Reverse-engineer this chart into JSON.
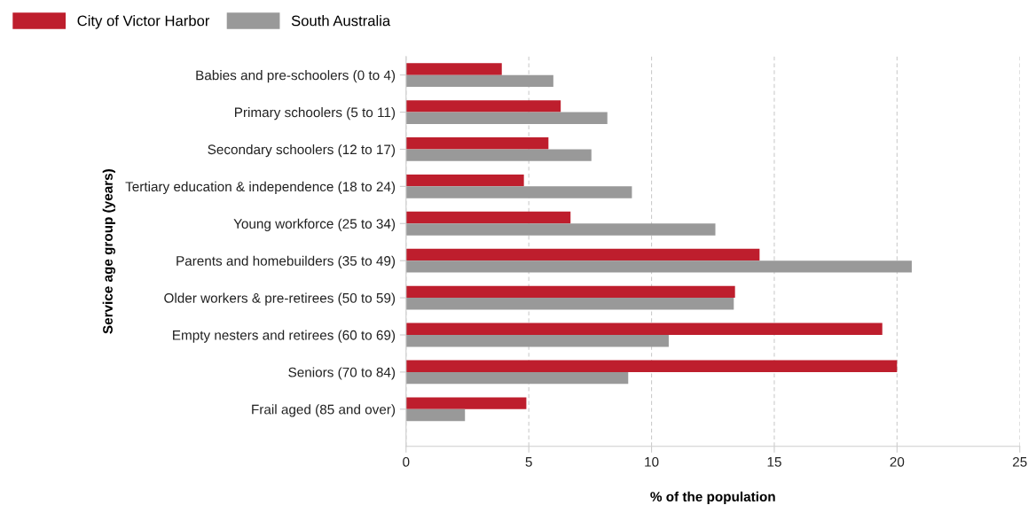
{
  "chart_data": {
    "type": "bar",
    "orientation": "horizontal",
    "xlabel": "% of the population",
    "ylabel": "Service age group (years)",
    "categories": [
      "Babies and pre-schoolers (0 to 4)",
      "Primary schoolers (5 to 11)",
      "Secondary schoolers (12 to 17)",
      "Tertiary education & independence (18 to 24)",
      "Young workforce (25 to 34)",
      "Parents and homebuilders (35 to 49)",
      "Older workers & pre-retirees (50 to 59)",
      "Empty nesters and retirees (60 to 69)",
      "Seniors (70 to 84)",
      "Frail aged (85 and over)"
    ],
    "series": [
      {
        "name": "City of Victor Harbor",
        "color": "#be1e2d",
        "values": [
          3.9,
          6.3,
          5.8,
          4.8,
          6.7,
          14.4,
          13.4,
          19.4,
          20.0,
          4.9
        ]
      },
      {
        "name": "South Australia",
        "color": "#999999",
        "values": [
          6.0,
          8.2,
          7.55,
          9.2,
          12.6,
          20.6,
          13.35,
          10.7,
          9.05,
          2.4
        ]
      }
    ],
    "xlim": [
      0,
      25
    ],
    "xticks": [
      0,
      5,
      10,
      15,
      20,
      25
    ],
    "grid": "x",
    "legend": "top left"
  }
}
